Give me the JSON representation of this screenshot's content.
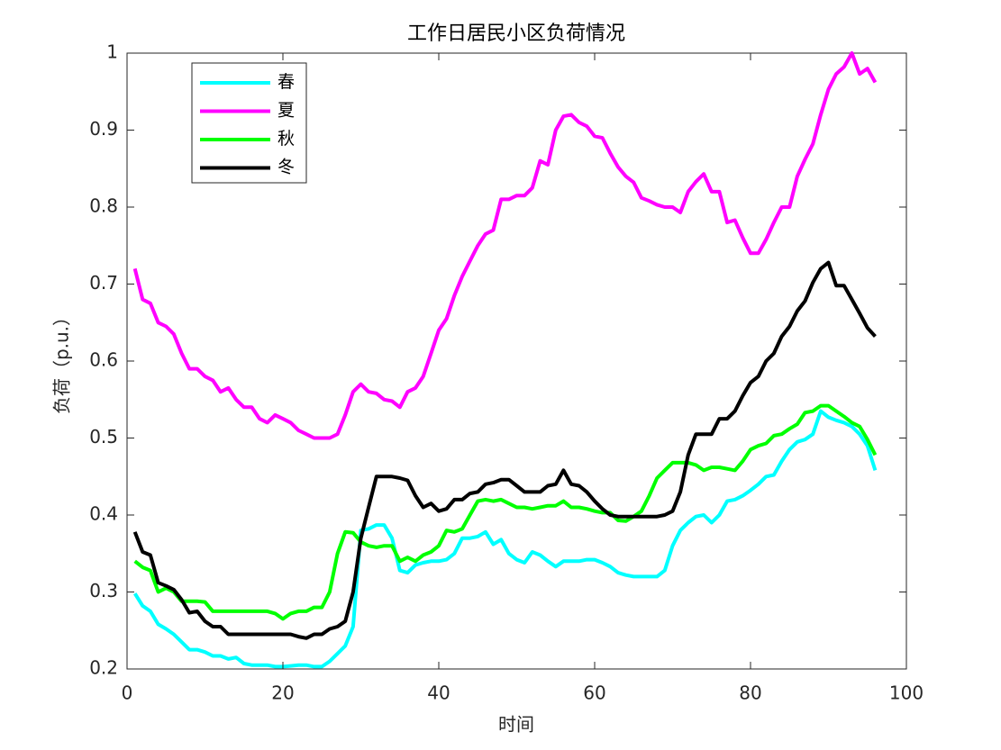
{
  "chart_data": {
    "type": "line",
    "title": "工作日居民小区负荷情况",
    "x_label": "时间",
    "y_label": "负荷（p.u.）",
    "x": [
      1,
      2,
      3,
      4,
      5,
      6,
      7,
      8,
      9,
      10,
      11,
      12,
      13,
      14,
      15,
      16,
      17,
      18,
      19,
      20,
      21,
      22,
      23,
      24,
      25,
      26,
      27,
      28,
      29,
      30,
      31,
      32,
      33,
      34,
      35,
      36,
      37,
      38,
      39,
      40,
      41,
      42,
      43,
      44,
      45,
      46,
      47,
      48,
      49,
      50,
      51,
      52,
      53,
      54,
      55,
      56,
      57,
      58,
      59,
      60,
      61,
      62,
      63,
      64,
      65,
      66,
      67,
      68,
      69,
      70,
      71,
      72,
      73,
      74,
      75,
      76,
      77,
      78,
      79,
      80,
      81,
      82,
      83,
      84,
      85,
      86,
      87,
      88,
      89,
      90,
      91,
      92,
      93,
      94,
      95,
      96
    ],
    "series": [
      {
        "name": "春",
        "color": "#00ffff",
        "values": [
          0.298,
          0.282,
          0.275,
          0.258,
          0.252,
          0.245,
          0.235,
          0.225,
          0.225,
          0.222,
          0.217,
          0.217,
          0.213,
          0.215,
          0.207,
          0.205,
          0.205,
          0.205,
          0.203,
          0.203,
          0.204,
          0.205,
          0.205,
          0.203,
          0.203,
          0.21,
          0.22,
          0.23,
          0.255,
          0.38,
          0.382,
          0.387,
          0.387,
          0.37,
          0.328,
          0.325,
          0.335,
          0.338,
          0.34,
          0.34,
          0.342,
          0.35,
          0.37,
          0.37,
          0.372,
          0.378,
          0.362,
          0.368,
          0.35,
          0.342,
          0.338,
          0.352,
          0.348,
          0.34,
          0.333,
          0.34,
          0.34,
          0.34,
          0.342,
          0.342,
          0.338,
          0.333,
          0.325,
          0.322,
          0.32,
          0.32,
          0.32,
          0.32,
          0.328,
          0.36,
          0.38,
          0.39,
          0.398,
          0.4,
          0.39,
          0.4,
          0.418,
          0.42,
          0.425,
          0.432,
          0.44,
          0.45,
          0.452,
          0.47,
          0.485,
          0.495,
          0.498,
          0.505,
          0.535,
          0.527,
          0.523,
          0.52,
          0.515,
          0.505,
          0.49,
          0.458
        ]
      },
      {
        "name": "夏",
        "color": "#ff00ff",
        "values": [
          0.72,
          0.68,
          0.675,
          0.65,
          0.645,
          0.635,
          0.61,
          0.59,
          0.59,
          0.58,
          0.575,
          0.56,
          0.565,
          0.55,
          0.54,
          0.54,
          0.525,
          0.52,
          0.53,
          0.525,
          0.52,
          0.51,
          0.505,
          0.5,
          0.5,
          0.5,
          0.505,
          0.53,
          0.56,
          0.57,
          0.56,
          0.558,
          0.55,
          0.548,
          0.54,
          0.56,
          0.565,
          0.58,
          0.61,
          0.64,
          0.655,
          0.685,
          0.71,
          0.73,
          0.75,
          0.765,
          0.77,
          0.81,
          0.81,
          0.815,
          0.815,
          0.825,
          0.86,
          0.855,
          0.9,
          0.918,
          0.92,
          0.91,
          0.905,
          0.892,
          0.89,
          0.87,
          0.852,
          0.84,
          0.832,
          0.812,
          0.808,
          0.803,
          0.8,
          0.8,
          0.793,
          0.82,
          0.833,
          0.843,
          0.82,
          0.82,
          0.78,
          0.783,
          0.76,
          0.74,
          0.74,
          0.758,
          0.78,
          0.8,
          0.8,
          0.84,
          0.862,
          0.882,
          0.92,
          0.953,
          0.973,
          0.982,
          1.0,
          0.973,
          0.98,
          0.962
        ]
      },
      {
        "name": "秋",
        "color": "#00ff00",
        "values": [
          0.34,
          0.332,
          0.328,
          0.3,
          0.305,
          0.3,
          0.288,
          0.288,
          0.288,
          0.287,
          0.275,
          0.275,
          0.275,
          0.275,
          0.275,
          0.275,
          0.275,
          0.275,
          0.272,
          0.265,
          0.272,
          0.275,
          0.275,
          0.28,
          0.28,
          0.3,
          0.35,
          0.378,
          0.377,
          0.365,
          0.36,
          0.358,
          0.36,
          0.36,
          0.34,
          0.345,
          0.34,
          0.348,
          0.352,
          0.36,
          0.38,
          0.378,
          0.382,
          0.4,
          0.418,
          0.42,
          0.418,
          0.42,
          0.415,
          0.41,
          0.41,
          0.408,
          0.41,
          0.412,
          0.412,
          0.418,
          0.41,
          0.41,
          0.408,
          0.405,
          0.403,
          0.403,
          0.393,
          0.392,
          0.398,
          0.405,
          0.425,
          0.448,
          0.458,
          0.468,
          0.468,
          0.468,
          0.465,
          0.458,
          0.462,
          0.462,
          0.46,
          0.458,
          0.47,
          0.485,
          0.49,
          0.493,
          0.503,
          0.505,
          0.512,
          0.518,
          0.533,
          0.535,
          0.542,
          0.542,
          0.535,
          0.528,
          0.52,
          0.515,
          0.498,
          0.478
        ]
      },
      {
        "name": "冬",
        "color": "#000000",
        "values": [
          0.378,
          0.352,
          0.348,
          0.312,
          0.308,
          0.303,
          0.29,
          0.273,
          0.275,
          0.262,
          0.255,
          0.255,
          0.245,
          0.245,
          0.245,
          0.245,
          0.245,
          0.245,
          0.245,
          0.245,
          0.245,
          0.242,
          0.24,
          0.245,
          0.245,
          0.252,
          0.255,
          0.262,
          0.3,
          0.37,
          0.41,
          0.45,
          0.45,
          0.45,
          0.448,
          0.445,
          0.425,
          0.41,
          0.415,
          0.405,
          0.408,
          0.42,
          0.42,
          0.428,
          0.43,
          0.44,
          0.442,
          0.446,
          0.446,
          0.438,
          0.43,
          0.43,
          0.43,
          0.438,
          0.44,
          0.458,
          0.44,
          0.438,
          0.43,
          0.418,
          0.408,
          0.4,
          0.398,
          0.398,
          0.398,
          0.398,
          0.398,
          0.398,
          0.4,
          0.405,
          0.43,
          0.478,
          0.505,
          0.505,
          0.505,
          0.525,
          0.525,
          0.535,
          0.555,
          0.572,
          0.58,
          0.6,
          0.61,
          0.632,
          0.645,
          0.665,
          0.678,
          0.702,
          0.72,
          0.728,
          0.698,
          0.698,
          0.68,
          0.662,
          0.643,
          0.632
        ]
      }
    ],
    "xlim": [
      0,
      100
    ],
    "xticks": [
      0,
      20,
      40,
      60,
      80,
      100
    ],
    "ylim": [
      0.2,
      1
    ],
    "yticks": [
      0.2,
      0.3,
      0.4,
      0.5,
      0.6,
      0.7,
      0.8,
      0.9,
      1
    ],
    "grid": false,
    "legend": "upper left"
  }
}
